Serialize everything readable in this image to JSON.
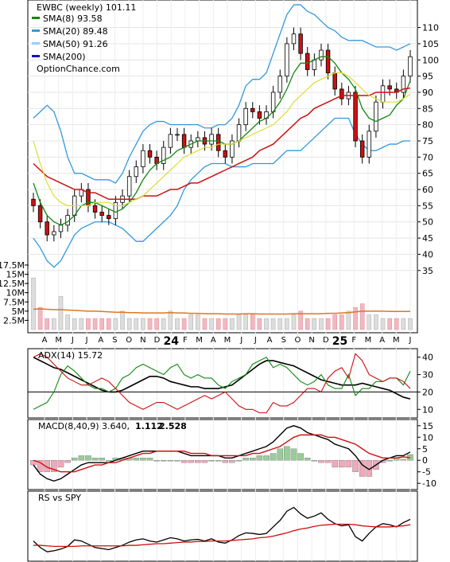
{
  "chart_data": [
    {
      "type": "candlestick",
      "title": "EWBC (weekly) 101.11",
      "brand": "OptionChance.com",
      "legend": [
        {
          "label": "SMA(8) 93.58",
          "color": "#118811"
        },
        {
          "label": "SMA(20) 89.48",
          "color": "#3399dd"
        },
        {
          "label": "SMA(50) 91.26",
          "color": "#99ccff"
        },
        {
          "label": "SMA(200)",
          "color": "#1111cc"
        }
      ],
      "ylim": [
        32,
        118
      ],
      "yticks": [
        35,
        40,
        45,
        50,
        55,
        60,
        65,
        70,
        75,
        80,
        85,
        90,
        95,
        100,
        105,
        110
      ],
      "close": [
        55,
        50,
        46,
        47,
        49,
        52,
        58,
        60,
        55,
        53,
        52,
        51,
        56,
        58,
        64,
        67,
        72,
        70,
        68,
        73,
        77,
        77,
        73,
        75,
        76,
        74,
        77,
        72,
        70,
        75,
        80,
        85,
        84,
        82,
        84,
        90,
        95,
        105,
        108,
        102,
        97,
        100,
        103,
        96,
        91,
        88,
        90,
        75,
        70,
        78,
        87,
        92,
        91,
        90,
        95,
        101
      ],
      "sma8": [
        62,
        56,
        52,
        50,
        49,
        50,
        52,
        55,
        56,
        56,
        55,
        54,
        53,
        54,
        56,
        59,
        63,
        66,
        68,
        69,
        70,
        72,
        73,
        74,
        75,
        75,
        75,
        75,
        74,
        74,
        75,
        77,
        79,
        81,
        82,
        84,
        87,
        91,
        96,
        99,
        99,
        100,
        101,
        101,
        99,
        96,
        94,
        91,
        85,
        82,
        81,
        82,
        83,
        86,
        88,
        93.6
      ],
      "sma20": [
        75,
        68,
        62,
        58,
        56,
        55,
        55,
        55,
        55,
        56,
        56,
        56,
        55,
        55,
        56,
        57,
        58,
        60,
        62,
        64,
        66,
        68,
        70,
        71,
        72,
        73,
        73,
        74,
        74,
        74,
        75,
        76,
        77,
        78,
        79,
        80,
        82,
        84,
        87,
        89,
        91,
        93,
        94,
        95,
        96,
        96,
        95,
        93,
        91,
        89,
        88,
        87,
        87,
        87,
        88,
        89.5
      ],
      "sma50": [
        68,
        66,
        64,
        63,
        62,
        61,
        60,
        60,
        59,
        59,
        58,
        57,
        57,
        57,
        57,
        57,
        58,
        58,
        58,
        59,
        60,
        60,
        61,
        62,
        62,
        63,
        64,
        65,
        66,
        67,
        68,
        69,
        70,
        72,
        73,
        74,
        76,
        78,
        80,
        82,
        83,
        85,
        86,
        87,
        88,
        89,
        89,
        89,
        89,
        89,
        90,
        90,
        90,
        90,
        91,
        91.3
      ],
      "bb_upper": [
        82,
        84,
        86,
        84,
        78,
        70,
        65,
        65,
        64,
        63,
        63,
        63,
        62,
        65,
        70,
        74,
        78,
        80,
        81,
        81,
        80,
        80,
        80,
        80,
        80,
        79,
        79,
        80,
        80,
        82,
        86,
        92,
        94,
        94,
        96,
        102,
        108,
        114,
        117,
        117,
        115,
        114,
        112,
        110,
        109,
        107,
        106,
        106,
        106,
        105,
        104,
        104,
        104,
        103,
        104,
        105
      ],
      "bb_lower": [
        45,
        42,
        38,
        36,
        38,
        42,
        46,
        48,
        49,
        50,
        50,
        50,
        49,
        48,
        46,
        44,
        44,
        46,
        48,
        50,
        52,
        55,
        60,
        63,
        65,
        67,
        68,
        68,
        68,
        67,
        67,
        67,
        68,
        68,
        68,
        68,
        70,
        72,
        72,
        72,
        74,
        76,
        78,
        80,
        82,
        82,
        82,
        77,
        74,
        72,
        72,
        73,
        74,
        74,
        75,
        75
      ],
      "volume_axis": {
        "ticks": [
          "17.5M",
          "15M",
          "12.5M",
          "10M",
          "7.5M",
          "5M",
          "2.5M"
        ],
        "values": [
          17.5,
          15,
          12.5,
          10,
          7.5,
          5,
          2.5
        ],
        "max": 19
      },
      "volume": [
        14,
        6,
        3,
        3,
        9,
        4,
        3,
        3,
        3,
        3,
        3,
        3,
        3,
        5,
        3,
        3,
        3,
        3,
        3,
        3,
        5,
        3,
        3,
        4,
        4,
        3,
        3,
        3,
        3,
        3,
        4,
        4,
        4,
        3,
        3,
        3,
        3,
        3,
        4,
        5,
        3,
        3,
        3,
        3,
        4,
        4,
        5,
        6,
        7,
        4,
        4,
        3,
        3,
        3,
        3,
        3
      ],
      "volume_ma": [
        5.5,
        5.6,
        5.5,
        5.4,
        5.4,
        5.3,
        5.2,
        5.1,
        5,
        5,
        4.9,
        4.8,
        4.7,
        4.7,
        4.6,
        4.6,
        4.5,
        4.5,
        4.5,
        4.5,
        4.6,
        4.5,
        4.5,
        4.4,
        4.4,
        4.3,
        4.3,
        4.3,
        4.2,
        4.2,
        4.2,
        4.3,
        4.3,
        4.2,
        4.2,
        4.2,
        4.2,
        4.2,
        4.3,
        4.3,
        4.3,
        4.3,
        4.3,
        4.4,
        4.4,
        4.5,
        4.6,
        4.8,
        5,
        5,
        5,
        5,
        4.9,
        4.9,
        4.9,
        4.9
      ]
    },
    {
      "type": "line",
      "title": "ADX(14) 15.72",
      "ylim": [
        6,
        44
      ],
      "yticks": [
        10,
        20,
        30,
        40
      ],
      "series": [
        {
          "name": "ADX",
          "color": "#000000",
          "values": [
            40,
            38,
            36,
            34,
            33,
            31,
            29,
            27,
            25,
            23,
            21,
            20,
            20,
            21,
            23,
            25,
            27,
            29,
            29,
            28,
            26,
            25,
            24,
            23,
            23,
            22,
            22,
            22,
            23,
            24,
            27,
            30,
            33,
            36,
            38,
            38,
            37,
            36,
            35,
            33,
            31,
            29,
            27,
            26,
            25,
            24,
            24,
            24,
            25,
            24,
            23,
            22,
            21,
            19,
            17,
            16
          ]
        },
        {
          "name": "+DI",
          "color": "#118811",
          "values": [
            10,
            12,
            14,
            20,
            30,
            35,
            32,
            28,
            24,
            22,
            22,
            20,
            22,
            28,
            30,
            34,
            36,
            34,
            32,
            30,
            34,
            36,
            30,
            28,
            30,
            28,
            28,
            24,
            22,
            26,
            28,
            30,
            36,
            38,
            40,
            34,
            36,
            34,
            30,
            26,
            24,
            26,
            30,
            24,
            22,
            22,
            30,
            18,
            22,
            22,
            26,
            26,
            28,
            28,
            24,
            32
          ]
        },
        {
          "name": "-DI",
          "color": "#cc1111",
          "values": [
            40,
            42,
            40,
            36,
            32,
            28,
            26,
            24,
            24,
            26,
            28,
            26,
            22,
            18,
            14,
            12,
            10,
            12,
            14,
            14,
            12,
            10,
            12,
            14,
            16,
            18,
            16,
            18,
            20,
            16,
            12,
            10,
            10,
            8,
            8,
            14,
            12,
            12,
            14,
            18,
            22,
            22,
            20,
            28,
            32,
            34,
            28,
            42,
            38,
            30,
            28,
            26,
            28,
            28,
            26,
            22
          ]
        }
      ]
    },
    {
      "type": "line",
      "title": "MACD(8,40,9) 3.640,",
      "values_text": [
        {
          "label": "1.112",
          "color": "#cc1111"
        },
        {
          "label": "2.528",
          "color": "#2255cc"
        }
      ],
      "ylim": [
        -12,
        17
      ],
      "yticks": [
        15,
        10,
        5,
        0,
        -5,
        -10
      ],
      "series": [
        {
          "name": "MACD",
          "color": "#000000",
          "values": [
            -2,
            -6,
            -8,
            -9,
            -8,
            -6,
            -4,
            -2,
            -1,
            -1,
            -1,
            -1,
            0,
            1,
            2,
            3,
            4,
            4,
            4,
            4,
            4,
            4,
            3,
            2,
            2,
            2,
            2,
            2,
            1,
            1,
            2,
            3,
            4,
            5,
            6,
            8,
            11,
            14,
            15,
            14,
            12,
            11,
            10,
            9,
            7,
            6,
            5,
            2,
            -2,
            -4,
            -2,
            0,
            1,
            2,
            2,
            3.6
          ]
        },
        {
          "name": "Signal",
          "color": "#cc1111",
          "values": [
            0,
            -1,
            -3,
            -4,
            -5,
            -5,
            -5,
            -4,
            -3,
            -2,
            -2,
            -1,
            -1,
            0,
            1,
            2,
            3,
            3,
            4,
            4,
            4,
            4,
            4,
            3,
            3,
            3,
            2,
            2,
            2,
            2,
            2,
            2,
            3,
            3,
            4,
            5,
            6,
            8,
            10,
            11,
            11,
            11,
            11,
            10,
            10,
            9,
            8,
            7,
            5,
            3,
            2,
            1,
            1,
            1,
            1.5,
            1.1
          ]
        }
      ],
      "histogram": [
        -2,
        -5,
        -5,
        -5,
        -3,
        -1,
        1,
        2,
        2,
        1,
        1,
        0,
        1,
        1,
        1,
        1,
        1,
        1,
        0,
        0,
        0,
        0,
        -1,
        -1,
        -1,
        -1,
        0,
        0,
        -1,
        -1,
        0,
        1,
        1,
        2,
        2,
        3,
        5,
        6,
        5,
        3,
        1,
        0,
        -1,
        -1,
        -3,
        -3,
        -3,
        -5,
        -7,
        -7,
        -4,
        -1,
        0,
        1,
        0.5,
        2.5
      ]
    },
    {
      "type": "line",
      "title": "RS vs SPY",
      "ylim": [
        0,
        100
      ],
      "series": [
        {
          "name": "RS",
          "color": "#000000",
          "values": [
            30,
            18,
            10,
            12,
            15,
            20,
            32,
            30,
            24,
            18,
            16,
            14,
            18,
            22,
            28,
            32,
            34,
            30,
            28,
            32,
            36,
            34,
            30,
            32,
            33,
            30,
            34,
            28,
            26,
            32,
            40,
            45,
            44,
            42,
            44,
            56,
            68,
            85,
            92,
            80,
            72,
            76,
            82,
            70,
            62,
            58,
            60,
            38,
            30,
            44,
            56,
            62,
            60,
            56,
            64,
            70
          ]
        },
        {
          "name": "SMA",
          "color": "#cc1111",
          "values": [
            22,
            22,
            21,
            20,
            20,
            20,
            20,
            21,
            21,
            21,
            21,
            21,
            21,
            21,
            22,
            22,
            23,
            24,
            25,
            25,
            26,
            27,
            28,
            28,
            29,
            29,
            30,
            30,
            30,
            31,
            32,
            33,
            34,
            36,
            37,
            39,
            42,
            45,
            49,
            52,
            54,
            57,
            59,
            60,
            61,
            61,
            61,
            60,
            58,
            57,
            56,
            56,
            56,
            57,
            58,
            60
          ]
        }
      ]
    }
  ],
  "x_axis": {
    "months": [
      "A",
      "M",
      "J",
      "J",
      "A",
      "S",
      "O",
      "N",
      "D",
      "24",
      "F",
      "M",
      "A",
      "M",
      "J",
      "J",
      "A",
      "S",
      "O",
      "N",
      "D",
      "25",
      "F",
      "M",
      "A",
      "M",
      "J"
    ],
    "year_labels": [
      "24",
      "25"
    ]
  }
}
